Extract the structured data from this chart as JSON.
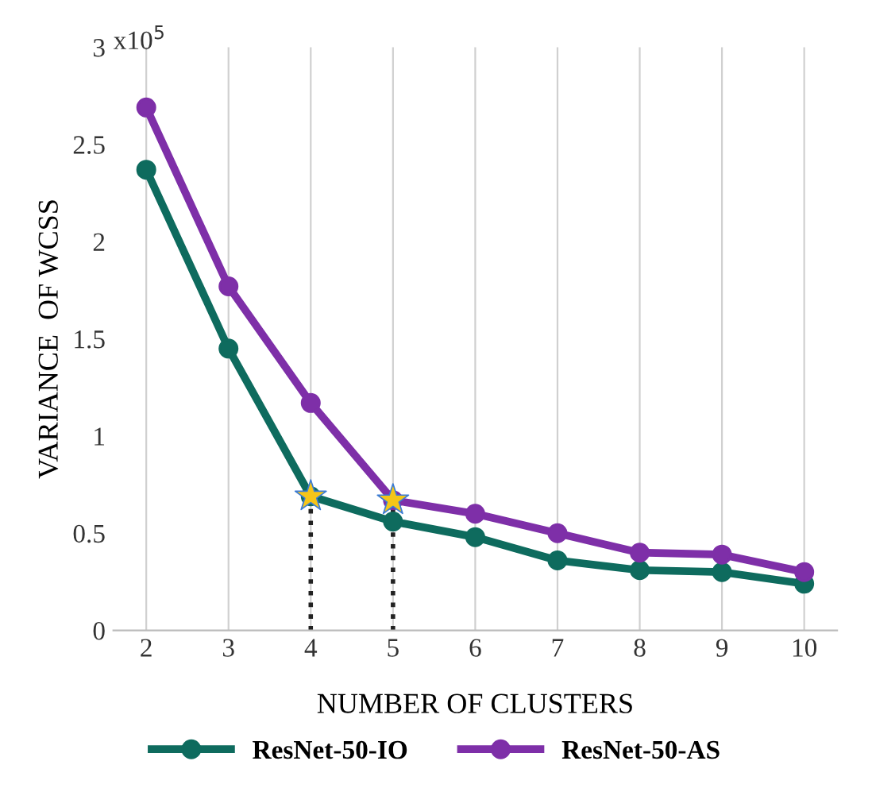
{
  "chart_data": {
    "type": "line",
    "xlabel": "NUMBER OF CLUSTERS",
    "ylabel": "VARIANCE  OF WCSS",
    "categories": [
      "2",
      "3",
      "4",
      "5",
      "6",
      "7",
      "8",
      "9",
      "10"
    ],
    "series": [
      {
        "name": "ResNet-50-IO",
        "color": "#0e6b5e",
        "values": [
          2.37,
          1.45,
          0.69,
          0.56,
          0.48,
          0.36,
          0.31,
          0.3,
          0.24
        ]
      },
      {
        "name": "ResNet-50-AS",
        "color": "#7e2fa8",
        "values": [
          2.69,
          1.77,
          1.17,
          0.67,
          0.6,
          0.5,
          0.4,
          0.39,
          0.3
        ]
      },
      {
        "type": "scatter",
        "color": "#f5c518",
        "x": [
          "4",
          "5"
        ],
        "values": [
          0.69,
          0.67
        ],
        "marker": "star",
        "line_style": "dotted"
      }
    ],
    "ylim": [
      0,
      3
    ],
    "yticks": [
      0,
      0.5,
      1,
      1.5,
      2,
      2.5,
      3
    ],
    "annotations": [
      "x10$^{5}$"
    ],
    "grid": "x",
    "legend": "bottom",
    "marker": "circle"
  }
}
